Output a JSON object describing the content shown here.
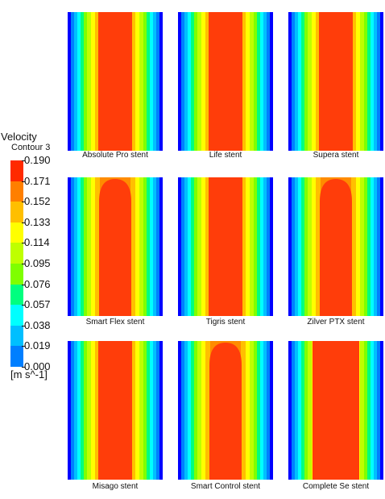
{
  "legend": {
    "title": "Velocity",
    "subtitle": "Contour 3",
    "unit": "[m s^-1]",
    "ticks": [
      "0.190",
      "0.171",
      "0.152",
      "0.133",
      "0.114",
      "0.095",
      "0.076",
      "0.057",
      "0.038",
      "0.019",
      "0.000"
    ],
    "colors": [
      "#ff2a00",
      "#ff7f00",
      "#ffbf00",
      "#ffff00",
      "#bfff00",
      "#7fff00",
      "#00ff7f",
      "#00ffff",
      "#00bfff",
      "#007fff",
      "#0000ff"
    ]
  },
  "panels": [
    {
      "label": "Absolute Pro stent",
      "profile": "uniform"
    },
    {
      "label": "Life stent",
      "profile": "uniform"
    },
    {
      "label": "Supera stent",
      "profile": "uniform"
    },
    {
      "label": "Smart Flex stent",
      "profile": "developing"
    },
    {
      "label": "Tigris stent",
      "profile": "uniform"
    },
    {
      "label": "Zilver PTX stent",
      "profile": "developing"
    },
    {
      "label": "Misago stent",
      "profile": "uniform"
    },
    {
      "label": "Smart Control stent",
      "profile": "developing"
    },
    {
      "label": "Complete Se stent",
      "profile": "wide"
    }
  ]
}
